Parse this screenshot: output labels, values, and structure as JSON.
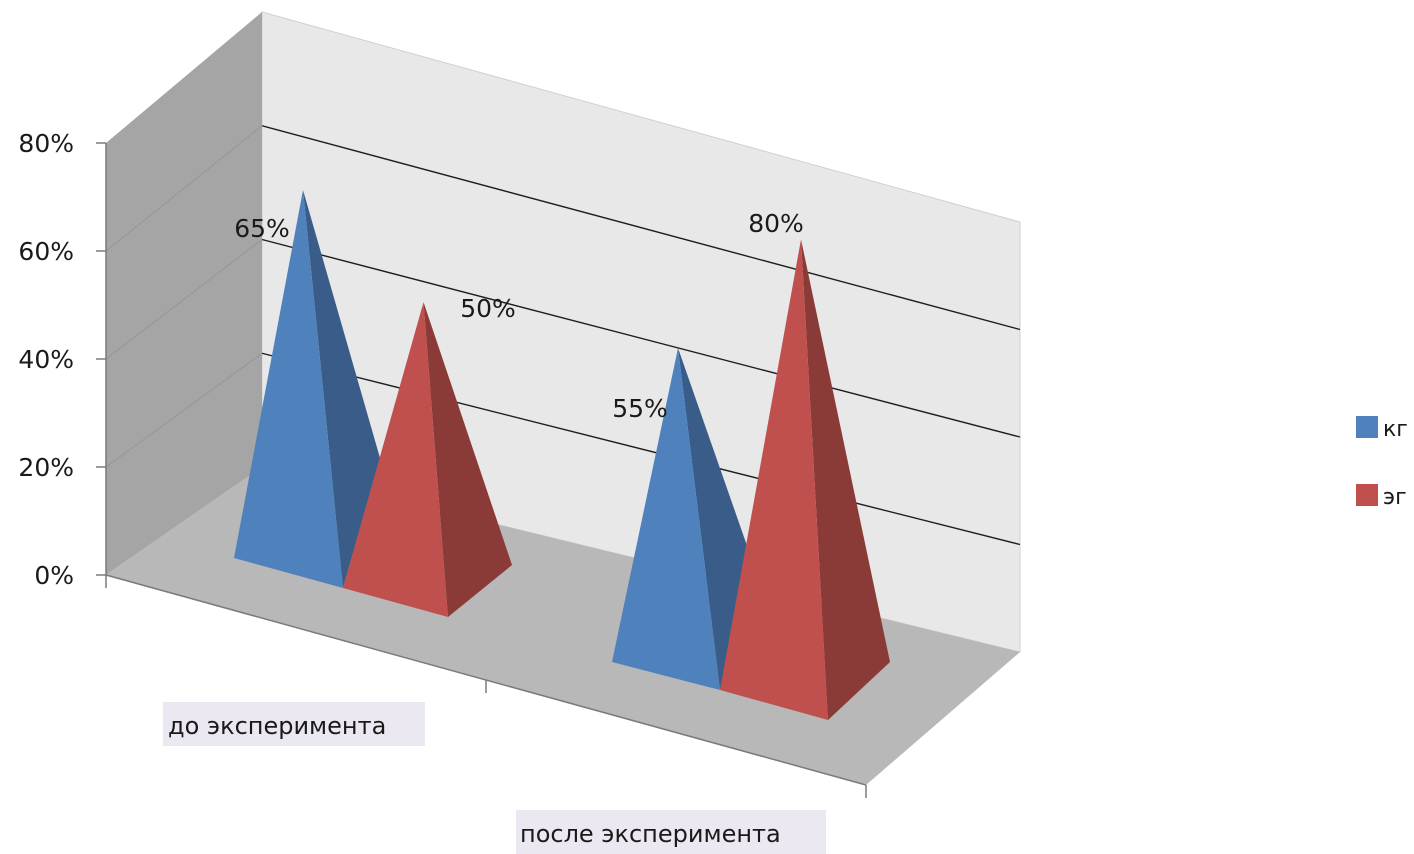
{
  "chart_data": {
    "type": "bar",
    "style": "3d-pyramid",
    "categories": [
      "до эксперимента",
      "после эксперимента"
    ],
    "series": [
      {
        "name": "кг",
        "values": [
          65,
          55
        ],
        "color": "#4f81bd",
        "labels": [
          "65%",
          "55%"
        ]
      },
      {
        "name": "эг",
        "values": [
          50,
          80
        ],
        "color": "#c0504d",
        "labels": [
          "50%",
          "80%"
        ]
      }
    ],
    "y_ticks": [
      "0%",
      "20%",
      "40%",
      "60%",
      "80%"
    ],
    "ylim": [
      0,
      80
    ],
    "grid": true,
    "legend_position": "right"
  }
}
